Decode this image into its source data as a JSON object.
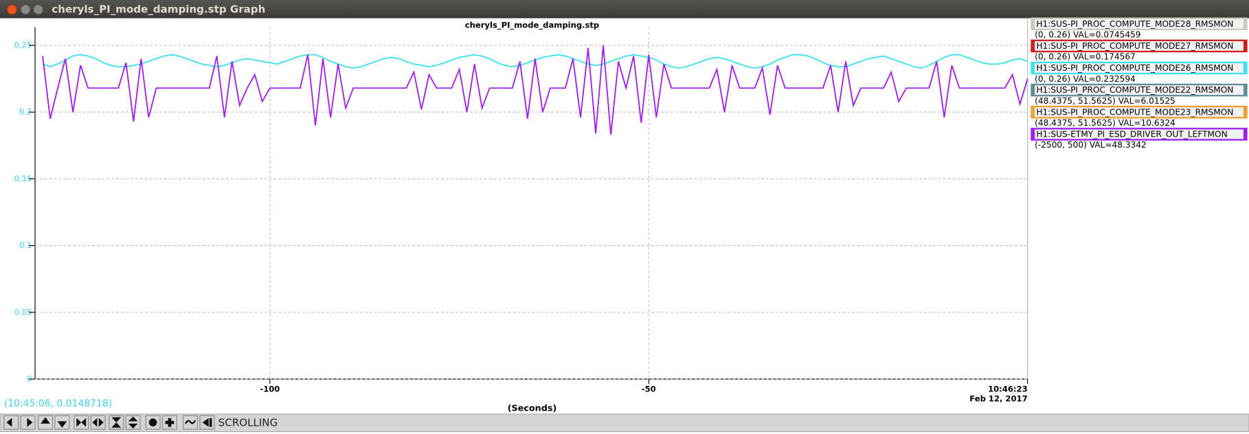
{
  "window": {
    "title": "cheryls_PI_mode_damping.stp Graph"
  },
  "chart_data": {
    "type": "line",
    "title": "cheryls_PI_mode_damping.stp",
    "x_label": "(Seconds)",
    "x_end_date": "Feb 12, 2017",
    "xlim": [
      -131,
      0
    ],
    "xticks": [
      -100,
      -50,
      {
        "value": 0,
        "label": "10:46:23"
      }
    ],
    "ylim": [
      0,
      0.26
    ],
    "yticks": [
      0,
      0.05,
      0.1,
      0.15,
      0.2,
      0.25
    ],
    "grid": true,
    "x": [
      -130,
      -129,
      -128,
      -127,
      -126,
      -125,
      -124,
      -123,
      -122,
      -121,
      -120,
      -119,
      -118,
      -117,
      -116,
      -115,
      -114,
      -113,
      -112,
      -111,
      -110,
      -109,
      -108,
      -107,
      -106,
      -105,
      -104,
      -103,
      -102,
      -101,
      -100,
      -99,
      -98,
      -97,
      -96,
      -95,
      -94,
      -93,
      -92,
      -91,
      -90,
      -89,
      -88,
      -87,
      -86,
      -85,
      -84,
      -83,
      -82,
      -81,
      -80,
      -79,
      -78,
      -77,
      -76,
      -75,
      -74,
      -73,
      -72,
      -71,
      -70,
      -69,
      -68,
      -67,
      -66,
      -65,
      -64,
      -63,
      -62,
      -61,
      -60,
      -59,
      -58,
      -57,
      -56,
      -55,
      -54,
      -53,
      -52,
      -51,
      -50,
      -49,
      -48,
      -47,
      -46,
      -45,
      -44,
      -43,
      -42,
      -41,
      -40,
      -39,
      -38,
      -37,
      -36,
      -35,
      -34,
      -33,
      -32,
      -31,
      -30,
      -29,
      -28,
      -27,
      -26,
      -25,
      -24,
      -23,
      -22,
      -21,
      -20,
      -19,
      -18,
      -17,
      -16,
      -15,
      -14,
      -13,
      -12,
      -11,
      -10,
      -9,
      -8,
      -7,
      -6,
      -5,
      -4,
      -3,
      -2,
      -1,
      0
    ],
    "series": [
      {
        "name": "H1:SUS-PI_PROC_COMPUTE_MODE28_RMSMON",
        "color": "#c5cbbf",
        "info": "(0, 0.26) VAL=0.0745459"
      },
      {
        "name": "H1:SUS-PI_PROC_COMPUTE_MODE27_RMSMON",
        "color": "#cc2020",
        "info": "(0, 0.26) VAL=0.174567"
      },
      {
        "name": "H1:SUS-PI_PROC_COMPUTE_MODE26_RMSMON",
        "color": "#40e0f0",
        "info": "(0, 0.26) VAL=0.232594",
        "values": [
          0.236,
          0.234,
          0.236,
          0.239,
          0.242,
          0.243,
          0.242,
          0.24,
          0.237,
          0.235,
          0.234,
          0.234,
          0.235,
          0.236,
          0.238,
          0.24,
          0.242,
          0.243,
          0.242,
          0.24,
          0.238,
          0.236,
          0.235,
          0.234,
          0.235,
          0.237,
          0.239,
          0.24,
          0.239,
          0.238,
          0.237,
          0.236,
          0.238,
          0.24,
          0.242,
          0.243,
          0.243,
          0.241,
          0.238,
          0.236,
          0.234,
          0.233,
          0.234,
          0.236,
          0.238,
          0.24,
          0.241,
          0.24,
          0.238,
          0.236,
          0.235,
          0.234,
          0.235,
          0.237,
          0.239,
          0.241,
          0.242,
          0.243,
          0.242,
          0.24,
          0.237,
          0.235,
          0.234,
          0.235,
          0.237,
          0.239,
          0.241,
          0.242,
          0.243,
          0.242,
          0.24,
          0.238,
          0.236,
          0.235,
          0.236,
          0.238,
          0.24,
          0.242,
          0.243,
          0.242,
          0.241,
          0.239,
          0.236,
          0.234,
          0.233,
          0.234,
          0.236,
          0.238,
          0.24,
          0.241,
          0.24,
          0.238,
          0.236,
          0.234,
          0.233,
          0.234,
          0.236,
          0.239,
          0.241,
          0.243,
          0.243,
          0.242,
          0.24,
          0.237,
          0.235,
          0.234,
          0.234,
          0.236,
          0.238,
          0.24,
          0.241,
          0.242,
          0.24,
          0.238,
          0.236,
          0.234,
          0.233,
          0.235,
          0.238,
          0.241,
          0.243,
          0.243,
          0.241,
          0.239,
          0.237,
          0.236,
          0.236,
          0.237,
          0.239,
          0.24,
          0.238
        ]
      },
      {
        "name": "H1:SUS-PI_PROC_COMPUTE_MODE22_RMSMON",
        "color": "#5f8f96",
        "info": "(48.4375, 51.5625) VAL=6.01525"
      },
      {
        "name": "H1:SUS-PI_PROC_COMPUTE_MODE23_RMSMON",
        "color": "#f0a030",
        "info": "(48.4375, 51.5625) VAL=10.6324"
      },
      {
        "name": "H1:SUS-ETMY_PI_ESD_DRIVER_OUT_LEFTMON",
        "color": "#a020f0",
        "info": "(-2500, 500) VAL=48.3342",
        "values": [
          0.242,
          0.195,
          0.218,
          0.24,
          0.2,
          0.235,
          0.218,
          0.218,
          0.218,
          0.218,
          0.218,
          0.237,
          0.193,
          0.24,
          0.196,
          0.218,
          0.218,
          0.218,
          0.218,
          0.218,
          0.218,
          0.218,
          0.218,
          0.242,
          0.196,
          0.238,
          0.205,
          0.218,
          0.228,
          0.208,
          0.218,
          0.218,
          0.218,
          0.218,
          0.218,
          0.243,
          0.19,
          0.24,
          0.196,
          0.236,
          0.203,
          0.218,
          0.218,
          0.218,
          0.218,
          0.218,
          0.218,
          0.218,
          0.218,
          0.23,
          0.202,
          0.228,
          0.218,
          0.218,
          0.218,
          0.232,
          0.2,
          0.236,
          0.203,
          0.218,
          0.218,
          0.218,
          0.218,
          0.238,
          0.195,
          0.24,
          0.2,
          0.218,
          0.218,
          0.218,
          0.24,
          0.196,
          0.248,
          0.184,
          0.25,
          0.183,
          0.238,
          0.218,
          0.242,
          0.192,
          0.243,
          0.196,
          0.236,
          0.218,
          0.218,
          0.218,
          0.218,
          0.218,
          0.218,
          0.232,
          0.2,
          0.235,
          0.218,
          0.218,
          0.218,
          0.233,
          0.198,
          0.235,
          0.218,
          0.218,
          0.218,
          0.218,
          0.218,
          0.218,
          0.235,
          0.2,
          0.238,
          0.205,
          0.218,
          0.218,
          0.218,
          0.218,
          0.23,
          0.208,
          0.218,
          0.218,
          0.218,
          0.218,
          0.238,
          0.196,
          0.235,
          0.218,
          0.218,
          0.218,
          0.218,
          0.218,
          0.218,
          0.218,
          0.228,
          0.206,
          0.225
        ]
      }
    ]
  },
  "status": "(10:45:06, 0.0148718)",
  "toolbar": {
    "mode": "SCROLLING"
  }
}
